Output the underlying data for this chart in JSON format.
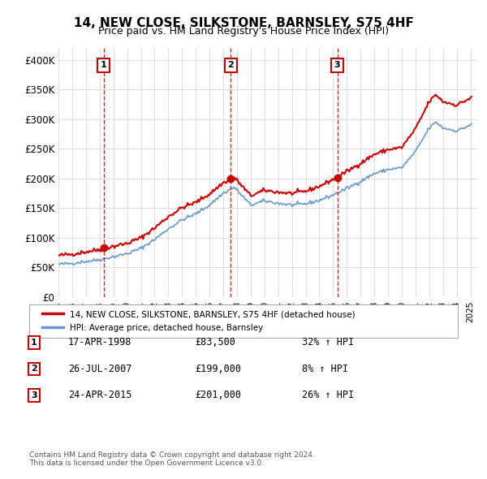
{
  "title": "14, NEW CLOSE, SILKSTONE, BARNSLEY, S75 4HF",
  "subtitle": "Price paid vs. HM Land Registry's House Price Index (HPI)",
  "legend_property": "14, NEW CLOSE, SILKSTONE, BARNSLEY, S75 4HF (detached house)",
  "legend_hpi": "HPI: Average price, detached house, Barnsley",
  "transactions": [
    {
      "num": 1,
      "date": "17-APR-1998",
      "price": 83500,
      "hpi_pct": "32% ↑ HPI",
      "x": 1998.29
    },
    {
      "num": 2,
      "date": "26-JUL-2007",
      "price": 199000,
      "hpi_pct": "8% ↑ HPI",
      "x": 2007.56
    },
    {
      "num": 3,
      "date": "24-APR-2015",
      "price": 201000,
      "hpi_pct": "26% ↑ HPI",
      "x": 2015.31
    }
  ],
  "property_color": "#cc0000",
  "hpi_color": "#6699cc",
  "vline_color": "#cc0000",
  "marker_color": "#cc0000",
  "background_color": "#ffffff",
  "grid_color": "#dddddd",
  "footnote": "Contains HM Land Registry data © Crown copyright and database right 2024.\nThis data is licensed under the Open Government Licence v3.0.",
  "ylim": [
    0,
    420000
  ],
  "xlim_start": 1995.0,
  "xlim_end": 2025.5
}
